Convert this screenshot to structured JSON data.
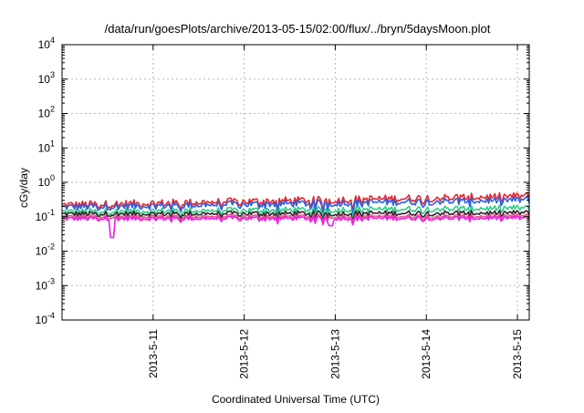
{
  "chart_data": {
    "type": "line",
    "title": "/data/run/goesPlots/archive/2013-05-15/02:00/flux/../bryn/5daysMoon.plot",
    "xlabel": "Coordinated Universal Time (UTC)",
    "ylabel": "cGy/day",
    "yscale": "log",
    "ylim": [
      0.0001,
      10000
    ],
    "xlim_days": [
      10.0,
      15.13
    ],
    "grid": true,
    "yticks": [
      {
        "value": 0.0001,
        "base": "10",
        "exp": "-4"
      },
      {
        "value": 0.001,
        "base": "10",
        "exp": "-3"
      },
      {
        "value": 0.01,
        "base": "10",
        "exp": "-2"
      },
      {
        "value": 0.1,
        "base": "10",
        "exp": "-1"
      },
      {
        "value": 1,
        "base": "10",
        "exp": "0"
      },
      {
        "value": 10,
        "base": "10",
        "exp": "1"
      },
      {
        "value": 100,
        "base": "10",
        "exp": "2"
      },
      {
        "value": 1000,
        "base": "10",
        "exp": "3"
      },
      {
        "value": 10000,
        "base": "10",
        "exp": "4"
      }
    ],
    "xticks": [
      {
        "label": "2013-5-11",
        "day": 11
      },
      {
        "label": "2013-5-12",
        "day": 12
      },
      {
        "label": "2013-5-13",
        "day": 13
      },
      {
        "label": "2013-5-14",
        "day": 14
      },
      {
        "label": "2013-5-15",
        "day": 15
      }
    ],
    "series": [
      {
        "color": "#e8272d",
        "level_start": 0.22,
        "level_end": 0.4,
        "amp": 0.45
      },
      {
        "color": "#2a62e8",
        "level_start": 0.19,
        "level_end": 0.31,
        "amp": 0.42
      },
      {
        "color": "#2fcf86",
        "level_start": 0.14,
        "level_end": 0.18,
        "amp": 0.35
      },
      {
        "color": "#3a1f2c",
        "level_start": 0.12,
        "level_end": 0.13,
        "amp": 0.3
      },
      {
        "color": "#e8548a",
        "level_start": 0.1,
        "level_end": 0.105,
        "amp": 0.25
      },
      {
        "color": "#ee1aee",
        "level_start": 0.088,
        "level_end": 0.092,
        "amp": 0.25
      }
    ]
  }
}
